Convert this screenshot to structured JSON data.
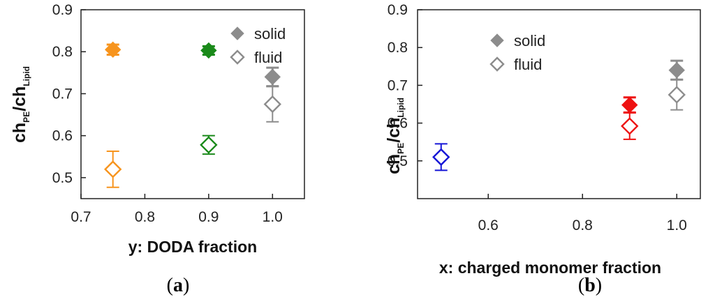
{
  "chart_data": [
    {
      "panel": "(a)",
      "type": "scatter",
      "xlabel": "y: DODA fraction",
      "ylabel": {
        "main1": "ch",
        "sub1": "PE",
        "sep": "/ch",
        "sub2": "Lipid"
      },
      "xlim": [
        0.7,
        1.05
      ],
      "ylim": [
        0.45,
        0.9
      ],
      "xticks": [
        "0.7",
        "0.8",
        "0.9",
        "1.0"
      ],
      "yticks": [
        "0.5",
        "0.6",
        "0.7",
        "0.8",
        "0.9"
      ],
      "legend_position": "top-right",
      "legend": [
        {
          "label": "solid",
          "marker": "filled-diamond"
        },
        {
          "label": "fluid",
          "marker": "open-diamond"
        }
      ],
      "series": [
        {
          "name": "solid",
          "filled": true,
          "points": [
            {
              "x": 0.75,
              "y": 0.805,
              "err": 0.012,
              "color": "#f7941d"
            },
            {
              "x": 0.9,
              "y": 0.803,
              "err": 0.01,
              "color": "#1a8a1a"
            },
            {
              "x": 1.0,
              "y": 0.74,
              "err": 0.022,
              "color": "#8c8c8c"
            }
          ]
        },
        {
          "name": "fluid",
          "filled": false,
          "points": [
            {
              "x": 0.75,
              "y": 0.52,
              "err": 0.043,
              "color": "#f7941d"
            },
            {
              "x": 0.9,
              "y": 0.578,
              "err": 0.022,
              "color": "#1a8a1a"
            },
            {
              "x": 1.0,
              "y": 0.675,
              "err": 0.042,
              "color": "#8c8c8c"
            }
          ]
        }
      ]
    },
    {
      "panel": "(b)",
      "type": "scatter",
      "xlabel": "x: charged monomer fraction",
      "ylabel": {
        "main1": "ch",
        "sub1": "PE",
        "sep": "/ch",
        "sub2": "Lipid"
      },
      "xlim": [
        0.45,
        1.05
      ],
      "ylim": [
        0.4,
        0.9
      ],
      "xticks": [
        "0.6",
        "0.8",
        "1.0"
      ],
      "yticks": [
        "0.5",
        "0.6",
        "0.7",
        "0.8",
        "0.9"
      ],
      "legend_position": "top-left",
      "legend": [
        {
          "label": "solid",
          "marker": "filled-diamond"
        },
        {
          "label": "fluid",
          "marker": "open-diamond"
        }
      ],
      "series": [
        {
          "name": "solid",
          "filled": true,
          "points": [
            {
              "x": 0.9,
              "y": 0.648,
              "err": 0.02,
              "color": "#ee1111"
            },
            {
              "x": 1.0,
              "y": 0.74,
              "err": 0.025,
              "color": "#8c8c8c"
            }
          ]
        },
        {
          "name": "fluid",
          "filled": false,
          "points": [
            {
              "x": 0.5,
              "y": 0.51,
              "err": 0.035,
              "color": "#1515d6"
            },
            {
              "x": 0.9,
              "y": 0.592,
              "err": 0.035,
              "color": "#ee1111"
            },
            {
              "x": 1.0,
              "y": 0.675,
              "err": 0.04,
              "color": "#8c8c8c"
            }
          ]
        }
      ]
    }
  ]
}
